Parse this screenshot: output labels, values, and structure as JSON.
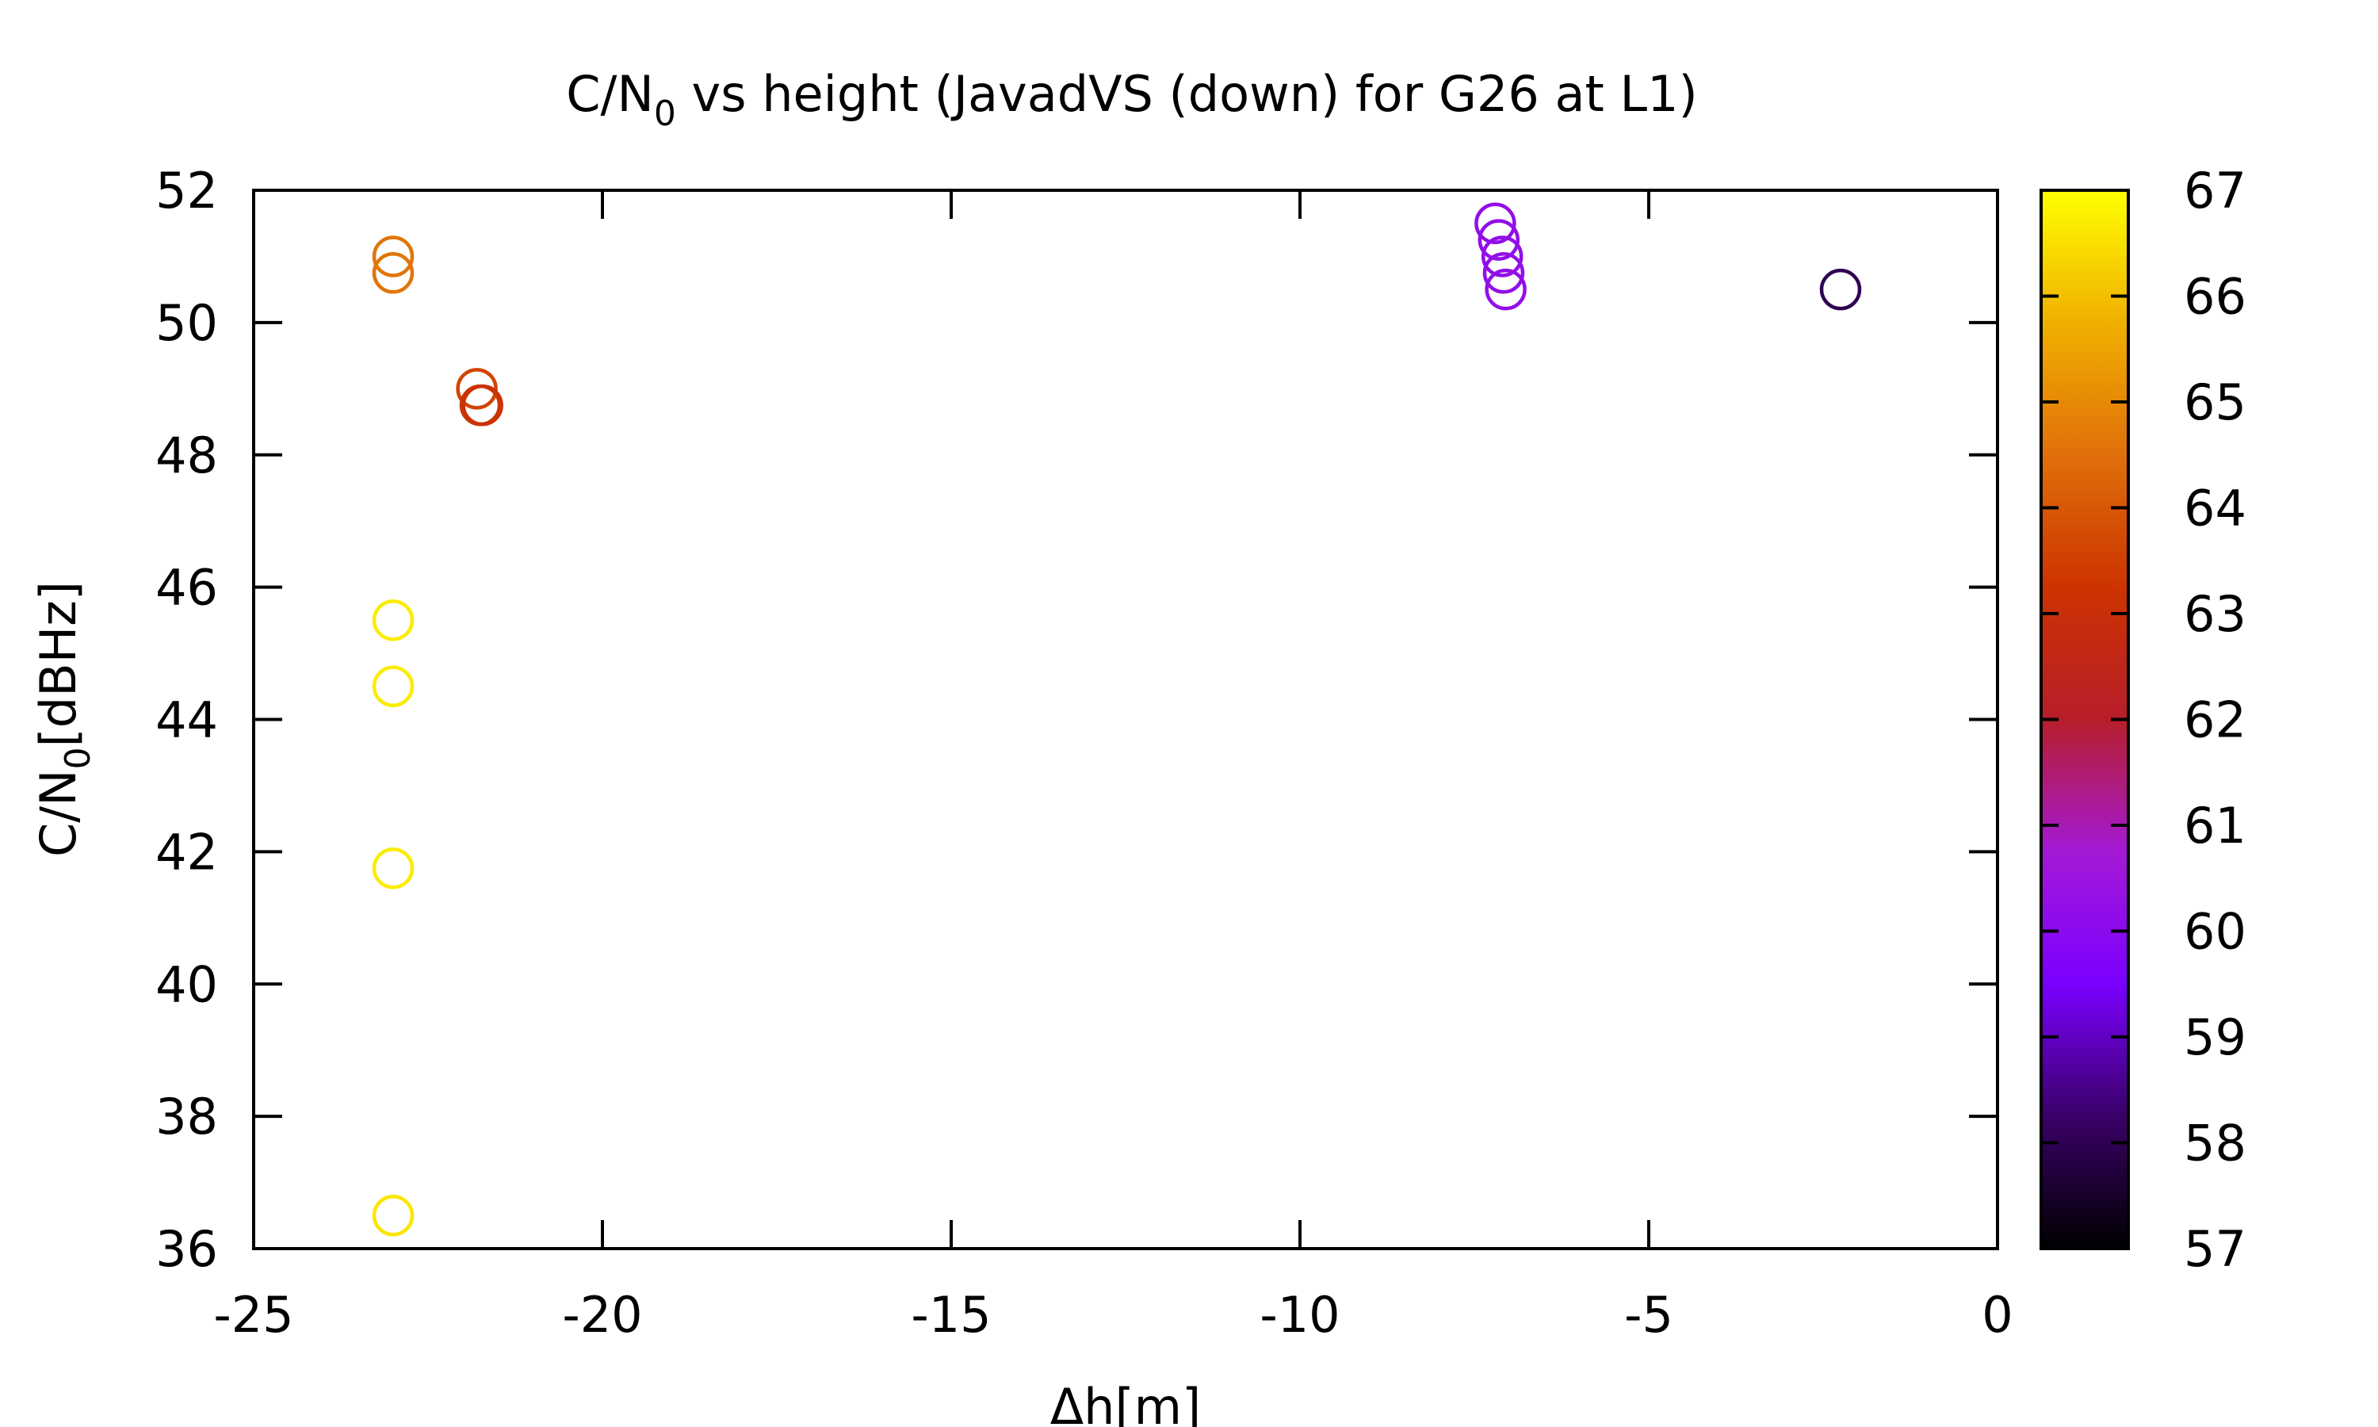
{
  "chart_data": {
    "type": "scatter",
    "title": "C/N",
    "title_sub": "0",
    "title_rest": " vs height (JavadVS (down) for G26 at L1)",
    "xlabel": "Δh[m]",
    "ylabel": "C/N",
    "ylabel_sub": "0",
    "ylabel_rest": "[dBHz]",
    "xlim": [
      -25,
      0
    ],
    "ylim": [
      36,
      52
    ],
    "x_ticks": [
      -25,
      -20,
      -15,
      -10,
      -5,
      0
    ],
    "y_ticks": [
      36,
      38,
      40,
      42,
      44,
      46,
      48,
      50,
      52
    ],
    "colorbar": {
      "range": [
        57,
        67
      ],
      "ticks": [
        57,
        58,
        59,
        60,
        61,
        62,
        63,
        64,
        65,
        66,
        67
      ],
      "palette": [
        "#000000",
        "#3a0068",
        "#7a00ff",
        "#a419d6",
        "#b71e2a",
        "#cc3300",
        "#e0700a",
        "#f0b000",
        "#ffff00"
      ]
    },
    "marker": "open-circle",
    "grid": false,
    "legend": false,
    "points": [
      {
        "x": -23.0,
        "y": 51.0,
        "c": 64.6
      },
      {
        "x": -23.0,
        "y": 50.75,
        "c": 64.6
      },
      {
        "x": -21.8,
        "y": 49.0,
        "c": 63.6
      },
      {
        "x": -21.75,
        "y": 48.75,
        "c": 63.3
      },
      {
        "x": -21.72,
        "y": 48.75,
        "c": 63.2
      },
      {
        "x": -23.0,
        "y": 45.5,
        "c": 66.7
      },
      {
        "x": -23.0,
        "y": 44.5,
        "c": 66.7
      },
      {
        "x": -23.0,
        "y": 41.75,
        "c": 66.7
      },
      {
        "x": -23.0,
        "y": 36.5,
        "c": 66.6
      },
      {
        "x": -7.2,
        "y": 51.5,
        "c": 60.2
      },
      {
        "x": -7.15,
        "y": 51.25,
        "c": 60.2
      },
      {
        "x": -7.1,
        "y": 51.0,
        "c": 60.2
      },
      {
        "x": -7.08,
        "y": 50.75,
        "c": 60.2
      },
      {
        "x": -7.05,
        "y": 50.5,
        "c": 60.2
      },
      {
        "x": -2.25,
        "y": 50.5,
        "c": 58.0
      }
    ]
  }
}
